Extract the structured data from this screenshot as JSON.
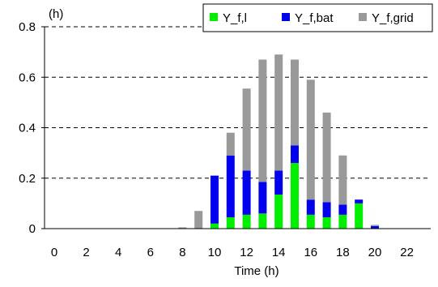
{
  "chart_data": {
    "type": "bar",
    "stacked": true,
    "title": "",
    "xlabel": "Time (h)",
    "ylabel": "(h)",
    "ylim": [
      0,
      0.8
    ],
    "yticks": [
      "0",
      "0.2",
      "0.4",
      "0.6",
      "0.8"
    ],
    "xtick_labels": [
      "0",
      "2",
      "4",
      "6",
      "8",
      "10",
      "12",
      "14",
      "16",
      "18",
      "20",
      "22"
    ],
    "xtick_values": [
      0,
      2,
      4,
      6,
      8,
      10,
      12,
      14,
      16,
      18,
      20,
      22
    ],
    "grid": "horizontal-dashed",
    "legend_position": "top-right",
    "x": [
      0,
      1,
      2,
      3,
      4,
      5,
      6,
      7,
      8,
      9,
      10,
      11,
      12,
      13,
      14,
      15,
      16,
      17,
      18,
      19,
      20,
      21,
      22,
      23
    ],
    "series": [
      {
        "name": "Y_f,l",
        "color": "#00ee00",
        "values": [
          0,
          0,
          0,
          0,
          0,
          0,
          0,
          0,
          0,
          0,
          0.02,
          0.045,
          0.055,
          0.06,
          0.135,
          0.26,
          0.055,
          0.045,
          0.055,
          0.1,
          0,
          0,
          0,
          0
        ]
      },
      {
        "name": "Y_f,bat",
        "color": "#0000ee",
        "values": [
          0,
          0,
          0,
          0,
          0,
          0,
          0,
          0,
          0,
          0,
          0.19,
          0.245,
          0.175,
          0.125,
          0.095,
          0.07,
          0.06,
          0.06,
          0.04,
          0.015,
          0.01,
          0,
          0,
          0
        ]
      },
      {
        "name": "Y_f,grid",
        "color": "#999999",
        "values": [
          0,
          0,
          0,
          0,
          0,
          0,
          0,
          0,
          0.005,
          0.07,
          0,
          0.09,
          0.325,
          0.485,
          0.46,
          0.34,
          0.475,
          0.355,
          0.195,
          0,
          0.005,
          0,
          0,
          0
        ]
      }
    ]
  }
}
